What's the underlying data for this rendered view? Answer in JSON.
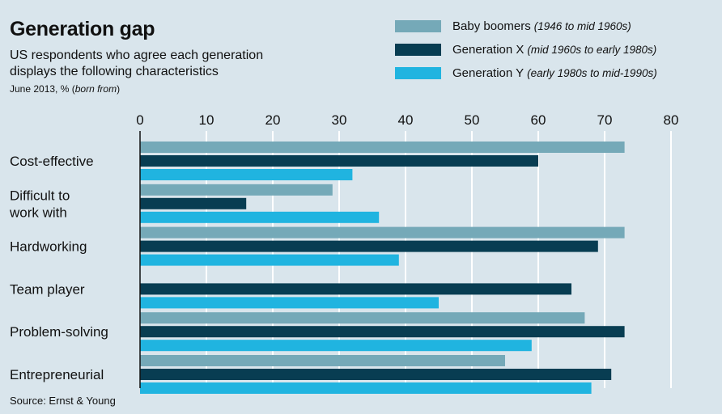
{
  "title": "Generation gap",
  "subtitle": "US respondents who agree each generation displays the following characteristics",
  "note_prefix": "June 2013, % (",
  "note_italic": "born from",
  "note_suffix": ")",
  "source": "Source: Ernst & Young",
  "legend": [
    {
      "name": "Baby boomers",
      "period": "(1946 to mid 1960s)",
      "color": "#75a9b8"
    },
    {
      "name": "Generation X",
      "period": "(mid 1960s to early 1980s)",
      "color": "#083d52"
    },
    {
      "name": "Generation Y",
      "period": "(early 1980s to mid-1990s)",
      "color": "#20b4e0"
    }
  ],
  "chart_data": {
    "type": "bar",
    "orientation": "horizontal",
    "categories": [
      [
        "Cost-effective"
      ],
      [
        "Difficult to",
        "work with"
      ],
      [
        "Hardworking"
      ],
      [
        "Team player"
      ],
      [
        "Problem-solving"
      ],
      [
        "Entrepreneurial"
      ]
    ],
    "series": [
      {
        "name": "Baby boomers",
        "color": "#75a9b8",
        "values": [
          73,
          29,
          73,
          0,
          67,
          55
        ]
      },
      {
        "name": "Generation X",
        "color": "#083d52",
        "values": [
          60,
          16,
          69,
          65,
          73,
          71
        ]
      },
      {
        "name": "Generation Y",
        "color": "#20b4e0",
        "values": [
          32,
          36,
          39,
          45,
          59,
          68
        ]
      }
    ],
    "xlim": [
      0,
      80
    ],
    "xticks": [
      0,
      10,
      20,
      30,
      40,
      50,
      60,
      70,
      80
    ],
    "xaxis_position": "top",
    "grid": "vertical white lines"
  }
}
